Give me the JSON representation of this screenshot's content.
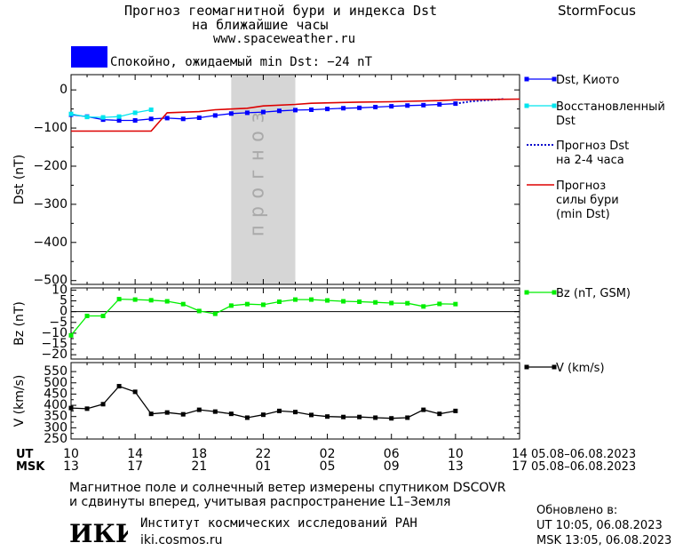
{
  "header": {
    "title_line1": "Прогноз геомагнитной бури и индекса Dst",
    "title_line2": "на ближайшие часы",
    "website": "www.spaceweather.ru",
    "brand": "StormFocus"
  },
  "status": {
    "text": "Спокойно, ожидаемый min Dst: −24 nT",
    "color": "#0000ff"
  },
  "colors": {
    "dst_kyoto": "#0000ff",
    "dst_restored": "#00e5ee",
    "dst_forecast": "#0000cc",
    "storm_forecast": "#dd0000",
    "bz": "#00ee00",
    "v": "#000000",
    "forecast_band": "#d6d6d6"
  },
  "chart_data": [
    {
      "type": "line",
      "name": "dst-panel",
      "ylabel": "Dst (nT)",
      "ylim": [
        -510,
        40
      ],
      "yticks": [
        0,
        -100,
        -200,
        -300,
        -400,
        -500
      ],
      "ytick_labels": [
        "0",
        "−100",
        "−200",
        "−300",
        "−400",
        "−500"
      ],
      "forecast_band": {
        "x_start": 10,
        "x_end": 14,
        "label": "прогноз"
      },
      "series": [
        {
          "name": "Dst, Киото",
          "marker": "square",
          "x": [
            0,
            1,
            2,
            3,
            4,
            5,
            6,
            7,
            8,
            9,
            10,
            11,
            12,
            13,
            14,
            15,
            16,
            17,
            18,
            19,
            20,
            21,
            22,
            23,
            24
          ],
          "y": [
            -65,
            -70,
            -78,
            -80,
            -80,
            -76,
            -74,
            -76,
            -73,
            -67,
            -62,
            -60,
            -58,
            -55,
            -53,
            -52,
            -50,
            -48,
            -47,
            -45,
            -43,
            -41,
            -40,
            -38,
            -36
          ]
        },
        {
          "name": "Восстановленный Dst",
          "marker": "square",
          "x": [
            0,
            1,
            2,
            3,
            4,
            5
          ],
          "y": [
            -63,
            -71,
            -72,
            -70,
            -60,
            -52
          ]
        },
        {
          "name": "Прогноз Dst на 2-4 часа",
          "style": "dotted",
          "x": [
            24,
            25,
            26,
            27
          ],
          "y": [
            -36,
            -30,
            -27,
            -24
          ]
        },
        {
          "name": "Прогноз силы бури (min Dst)",
          "style": "solid",
          "x": [
            0,
            5,
            6,
            8,
            9,
            11,
            12,
            14,
            15,
            17,
            18,
            20,
            21,
            23,
            24,
            26,
            28
          ],
          "y": [
            -108,
            -108,
            -60,
            -57,
            -52,
            -48,
            -42,
            -38,
            -35,
            -33,
            -32,
            -31,
            -30,
            -28,
            -26,
            -25,
            -24
          ]
        }
      ]
    },
    {
      "type": "line",
      "name": "bz-panel",
      "ylabel": "Bz (nT)",
      "ylim": [
        -22,
        11
      ],
      "yticks": [
        10,
        5,
        0,
        -5,
        -10,
        -15,
        -20
      ],
      "ytick_labels": [
        "10",
        "5",
        "0",
        "−5",
        "−10",
        "−15",
        "−20"
      ],
      "series": [
        {
          "name": "Bz (nT, GSM)",
          "marker": "square",
          "x": [
            0,
            1,
            2,
            3,
            4,
            5,
            6,
            7,
            8,
            9,
            10,
            11,
            12,
            13,
            14,
            15,
            16,
            17,
            18,
            19,
            20,
            21,
            22,
            23,
            24
          ],
          "y": [
            -11,
            -2,
            -2,
            5.8,
            5.6,
            5.3,
            4.8,
            3.5,
            0.3,
            -1,
            2.8,
            3.5,
            3.2,
            4.6,
            5.6,
            5.6,
            5.2,
            4.8,
            4.6,
            4.3,
            4,
            3.9,
            2.4,
            3.6,
            3.5
          ]
        }
      ]
    },
    {
      "type": "line",
      "name": "v-panel",
      "ylabel": "V (km/s)",
      "ylim": [
        250,
        590
      ],
      "yticks": [
        550,
        500,
        450,
        400,
        350,
        300,
        250
      ],
      "ytick_labels": [
        "550",
        "500",
        "450",
        "400",
        "350",
        "300",
        "250"
      ],
      "series": [
        {
          "name": "V (km/s)",
          "marker": "square",
          "x": [
            0,
            1,
            2,
            3,
            4,
            5,
            6,
            7,
            8,
            9,
            10,
            11,
            12,
            13,
            14,
            15,
            16,
            17,
            18,
            19,
            20,
            21,
            22,
            23,
            24
          ],
          "y": [
            388,
            385,
            405,
            485,
            460,
            362,
            368,
            360,
            380,
            372,
            362,
            345,
            358,
            375,
            370,
            357,
            350,
            348,
            348,
            345,
            342,
            345,
            380,
            362,
            375
          ]
        }
      ]
    }
  ],
  "axis": {
    "x_range_hours": [
      0,
      28
    ],
    "tick_hours": [
      0,
      4,
      8,
      12,
      16,
      20,
      24,
      28
    ],
    "ut_label": "UT",
    "msk_label": "MSK",
    "ut_ticks": [
      "10",
      "14",
      "18",
      "22",
      "02",
      "06",
      "10",
      "14"
    ],
    "msk_ticks": [
      "13",
      "17",
      "21",
      "01",
      "05",
      "09",
      "13",
      "17"
    ],
    "ut_date_range": "05.08–06.08.2023",
    "msk_date_range": "05.08–06.08.2023"
  },
  "footer": {
    "note_line1": "Магнитное поле и солнечный ветер измерены спутником DSCOVR",
    "note_line2": "и сдвинуты вперед, учитывая распространение L1–Земля",
    "logo_text": "ИКИ",
    "institute": "Институт космических исследований РАН",
    "institute_url": "iki.cosmos.ru",
    "updated_title": "Обновлено в:",
    "updated_ut": "UT   10:05, 06.08.2023",
    "updated_msk": "MSK 13:05, 06.08.2023"
  }
}
